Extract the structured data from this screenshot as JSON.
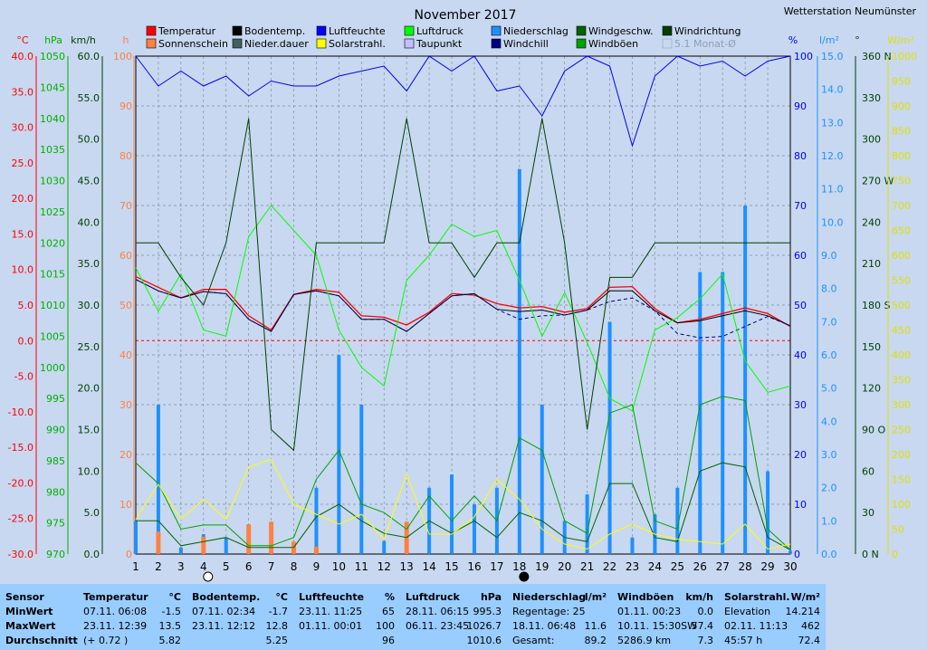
{
  "title": "November 2017",
  "station": "Wetterstation Neumünster",
  "legend": [
    {
      "label": "Temperatur",
      "color": "#ff0000"
    },
    {
      "label": "Bodentemp.",
      "color": "#000000"
    },
    {
      "label": "Luftfeuchte",
      "color": "#0000ff"
    },
    {
      "label": "Luftdruck",
      "color": "#00ff00"
    },
    {
      "label": "Niederschlag",
      "color": "#1e90ff"
    },
    {
      "label": "Windgeschw.",
      "color": "#006400"
    },
    {
      "label": "Windrichtung",
      "color": "#004000"
    },
    {
      "label": "Sonnenschein",
      "color": "#ff8040"
    },
    {
      "label": "Nieder.dauer",
      "color": "#406060"
    },
    {
      "label": "Solarstrahl.",
      "color": "#ffff00"
    },
    {
      "label": "Taupunkt",
      "color": "#c0c0ff"
    },
    {
      "label": "Windchill",
      "color": "#000080"
    },
    {
      "label": "Windböen",
      "color": "#00a000"
    },
    {
      "label": "5.1 Monat-Ø",
      "color": "#c8d8f0"
    }
  ],
  "axes": {
    "temp": {
      "unit": "°C",
      "color": "#ff0000",
      "ticks": [
        "40.0",
        "35.0",
        "30.0",
        "25.0",
        "20.0",
        "15.0",
        "10.0",
        "5.0",
        "0.0",
        "-5.0",
        "-10.0",
        "-15.0",
        "-20.0",
        "-25.0",
        "-30.0"
      ]
    },
    "pressure": {
      "unit": "hPa",
      "color": "#00b000",
      "ticks": [
        "1050",
        "1045",
        "1040",
        "1035",
        "1030",
        "1025",
        "1020",
        "1015",
        "1010",
        "1005",
        "1000",
        "995",
        "990",
        "985",
        "980",
        "975",
        "970"
      ]
    },
    "wind": {
      "unit": "km/h",
      "color": "#004000",
      "ticks": [
        "60.0",
        "55.0",
        "50.0",
        "45.0",
        "40.0",
        "35.0",
        "30.0",
        "25.0",
        "20.0",
        "15.0",
        "10.0",
        "5.0",
        "0.0"
      ]
    },
    "hours": {
      "unit": "h",
      "color": "#ff8040",
      "ticks": [
        "100",
        "90",
        "80",
        "70",
        "60",
        "50",
        "40",
        "30",
        "20",
        "10",
        "0"
      ]
    },
    "humidity": {
      "unit": "%",
      "color": "#0000ff",
      "ticks": [
        "100",
        "90",
        "80",
        "70",
        "60",
        "50",
        "40",
        "30",
        "20",
        "10",
        "0"
      ]
    },
    "rain": {
      "unit": "l/m²",
      "color": "#1e90ff",
      "ticks": [
        "15.0",
        "14.0",
        "13.0",
        "12.0",
        "11.0",
        "10.0",
        "9.0",
        "8.0",
        "7.0",
        "6.0",
        "5.0",
        "4.0",
        "3.0",
        "2.0",
        "1.0",
        "0.0"
      ]
    },
    "direction": {
      "unit": "°",
      "color": "#004000",
      "ticks": [
        "360 N",
        "330",
        "300",
        "270 W",
        "240",
        "210",
        "180 S",
        "150",
        "120",
        "90 O",
        "60",
        "30",
        "0 N"
      ]
    },
    "solar": {
      "unit": "W/m²",
      "color": "#e0e000",
      "ticks": [
        "1000",
        "950",
        "900",
        "850",
        "800",
        "750",
        "700",
        "650",
        "600",
        "550",
        "500",
        "450",
        "400",
        "350",
        "300",
        "250",
        "200",
        "150",
        "100",
        "50",
        "0"
      ]
    }
  },
  "chart_data": {
    "type": "line",
    "title": "November 2017",
    "x": [
      1,
      2,
      3,
      4,
      5,
      6,
      7,
      8,
      9,
      10,
      11,
      12,
      13,
      14,
      15,
      16,
      17,
      18,
      19,
      20,
      21,
      22,
      23,
      24,
      25,
      26,
      27,
      28,
      29,
      30
    ],
    "series": [
      {
        "name": "Temperatur",
        "axis": "temp",
        "values": [
          9.0,
          7.5,
          6.0,
          7.2,
          7.2,
          3.5,
          1.5,
          6.5,
          7.2,
          6.8,
          3.5,
          3.3,
          2.2,
          4.0,
          6.6,
          6.4,
          5.2,
          4.6,
          4.8,
          4.0,
          4.5,
          7.5,
          7.6,
          4.5,
          2.5,
          3.0,
          3.8,
          4.6,
          3.8,
          2.0
        ]
      },
      {
        "name": "Bodentemp.",
        "axis": "temp",
        "values": [
          8.6,
          7.0,
          6.0,
          6.9,
          6.6,
          3.0,
          1.3,
          6.5,
          7.0,
          6.3,
          3.0,
          3.0,
          1.3,
          3.8,
          6.3,
          6.6,
          4.4,
          4.1,
          4.3,
          3.6,
          4.3,
          7.0,
          7.0,
          4.2,
          2.5,
          2.8,
          3.5,
          4.2,
          3.5,
          2.1
        ]
      },
      {
        "name": "Windchill",
        "axis": "temp",
        "values": [
          8.6,
          7.0,
          6.0,
          6.9,
          6.6,
          3.0,
          1.3,
          6.5,
          7.0,
          6.3,
          3.0,
          3.0,
          1.3,
          3.8,
          6.3,
          6.6,
          4.4,
          3.0,
          3.5,
          3.6,
          4.3,
          5.5,
          6.0,
          4.2,
          1.0,
          0.4,
          0.6,
          2.0,
          3.4,
          2.1
        ]
      },
      {
        "name": "Luftfeuchte",
        "axis": "humidity",
        "values": [
          100,
          94,
          97,
          94,
          96,
          92,
          95,
          94,
          94,
          96,
          97,
          98,
          93,
          100,
          97,
          100,
          93,
          94,
          88,
          97,
          100,
          98,
          82,
          96,
          100,
          98,
          99,
          96,
          99,
          100
        ]
      },
      {
        "name": "Luftdruck",
        "axis": "pressure",
        "values": [
          1016,
          1009,
          1015,
          1006,
          1005,
          1021,
          1026,
          1022,
          1018,
          1006,
          1000,
          997,
          1014,
          1018,
          1023,
          1021,
          1022,
          1014,
          1005,
          1012,
          1004,
          995,
          993,
          1006,
          1008,
          1011,
          1015,
          1001,
          996,
          997
        ]
      },
      {
        "name": "Windgeschw.",
        "axis": "wind",
        "values": [
          4.0,
          4.0,
          1.0,
          1.5,
          2.0,
          0.8,
          0.8,
          0.8,
          4.5,
          6.0,
          4.0,
          2.5,
          2.0,
          4.0,
          2.5,
          4.0,
          2.0,
          5.0,
          4.0,
          2.0,
          1.5,
          8.5,
          8.5,
          2.0,
          1.5,
          10.0,
          11.0,
          10.5,
          2.0,
          0.5
        ]
      },
      {
        "name": "Windböen",
        "axis": "wind",
        "values": [
          11.0,
          8.5,
          3.0,
          3.5,
          3.5,
          1.0,
          1.0,
          2.0,
          9.0,
          12.5,
          6.0,
          5.0,
          3.0,
          7.0,
          4.0,
          7.0,
          4.0,
          14.0,
          12.5,
          4.0,
          2.5,
          17.0,
          18.0,
          4.0,
          3.0,
          18.0,
          19.0,
          18.5,
          3.0,
          0.5
        ]
      },
      {
        "name": "Windrichtung",
        "axis": "direction",
        "values": [
          225,
          225,
          200,
          180,
          225,
          315,
          90,
          75,
          225,
          225,
          225,
          225,
          315,
          225,
          225,
          200,
          225,
          225,
          315,
          225,
          90,
          200,
          200,
          225,
          225,
          225,
          225,
          225,
          225,
          225
        ]
      },
      {
        "name": "Solarstrahl.",
        "axis": "solar",
        "values": [
          70,
          140,
          70,
          110,
          70,
          175,
          190,
          100,
          80,
          60,
          80,
          30,
          160,
          40,
          40,
          75,
          150,
          110,
          50,
          20,
          10,
          40,
          60,
          40,
          30,
          25,
          20,
          60,
          10,
          20
        ]
      },
      {
        "name": "Niederschlag",
        "axis": "rain",
        "type": "bar",
        "values": [
          1.0,
          4.5,
          0.2,
          0.6,
          0.5,
          0,
          0,
          0.3,
          2.0,
          6.0,
          4.5,
          0.4,
          0.5,
          2.0,
          2.4,
          1.5,
          2.0,
          11.6,
          4.5,
          1.0,
          1.8,
          7.0,
          0.5,
          1.2,
          2.0,
          8.5,
          8.5,
          10.5,
          2.5,
          0.1
        ]
      },
      {
        "name": "Sonnenschein",
        "axis": "hours",
        "type": "bar",
        "values": [
          0,
          4.5,
          0,
          3.5,
          0,
          6,
          6.5,
          2.5,
          1.5,
          0,
          0,
          0,
          6.5,
          0,
          0,
          0,
          0,
          0,
          0,
          0,
          0,
          0,
          0,
          0,
          0,
          0,
          0,
          0,
          0,
          0
        ]
      }
    ],
    "ylabel_left": "°C",
    "ylabel_right": "%",
    "grid": true,
    "moon_marks": [
      {
        "day": 4,
        "phase": "full"
      },
      {
        "day": 18,
        "phase": "new"
      }
    ]
  },
  "stats": {
    "columns": [
      {
        "header": "Sensor",
        "unit": "",
        "rows": [
          {
            "a": "MinWert"
          },
          {
            "a": "MaxWert"
          },
          {
            "a": "Durchschnitt"
          }
        ]
      },
      {
        "header": "Temperatur",
        "unit": "°C",
        "rows": [
          {
            "a": "07.11.  06:08",
            "v": "-1.5"
          },
          {
            "a": "23.11.  12:39",
            "v": "13.5"
          },
          {
            "a": "(+ 0.72 )",
            "v": "5.82"
          }
        ]
      },
      {
        "header": "Bodentemp.",
        "unit": "°C",
        "rows": [
          {
            "a": "07.11.  02:34",
            "v": "-1.7"
          },
          {
            "a": "23.11.  12:12",
            "v": "12.8"
          },
          {
            "a": "",
            "v": "5.25"
          }
        ]
      },
      {
        "header": "Luftfeuchte",
        "unit": "%",
        "rows": [
          {
            "a": "23.11.  11:25",
            "v": "65"
          },
          {
            "a": "01.11.  00:01",
            "v": "100"
          },
          {
            "a": "",
            "v": "96"
          }
        ]
      },
      {
        "header": "Luftdruck",
        "unit": "hPa",
        "rows": [
          {
            "a": "28.11.  06:15",
            "v": "995.3"
          },
          {
            "a": "06.11.  23:45",
            "v": "1026.7"
          },
          {
            "a": "",
            "v": "1010.6"
          }
        ]
      },
      {
        "header": "Niederschlag",
        "unit": "l/m²",
        "rows": [
          {
            "a": "Regentage: 25",
            "v": ""
          },
          {
            "a": "18.11.  06:48",
            "v": "11.6"
          },
          {
            "a": "Gesamt:",
            "v": "89.2"
          }
        ]
      },
      {
        "header": "Windböen",
        "unit": "km/h",
        "rows": [
          {
            "a": "01.11.  00:23",
            "v": "0.0"
          },
          {
            "a": "10.11.  15:30SW",
            "v": "57.4"
          },
          {
            "a": "5286.9 km",
            "v": "7.3"
          }
        ]
      },
      {
        "header": "Solarstrahl.",
        "unit": "W/m²",
        "rows": [
          {
            "a": "Elevation",
            "v": "14.214"
          },
          {
            "a": "02.11.  11:13",
            "v": "462"
          },
          {
            "a": "45:57 h",
            "v": "72.4"
          }
        ]
      }
    ]
  }
}
